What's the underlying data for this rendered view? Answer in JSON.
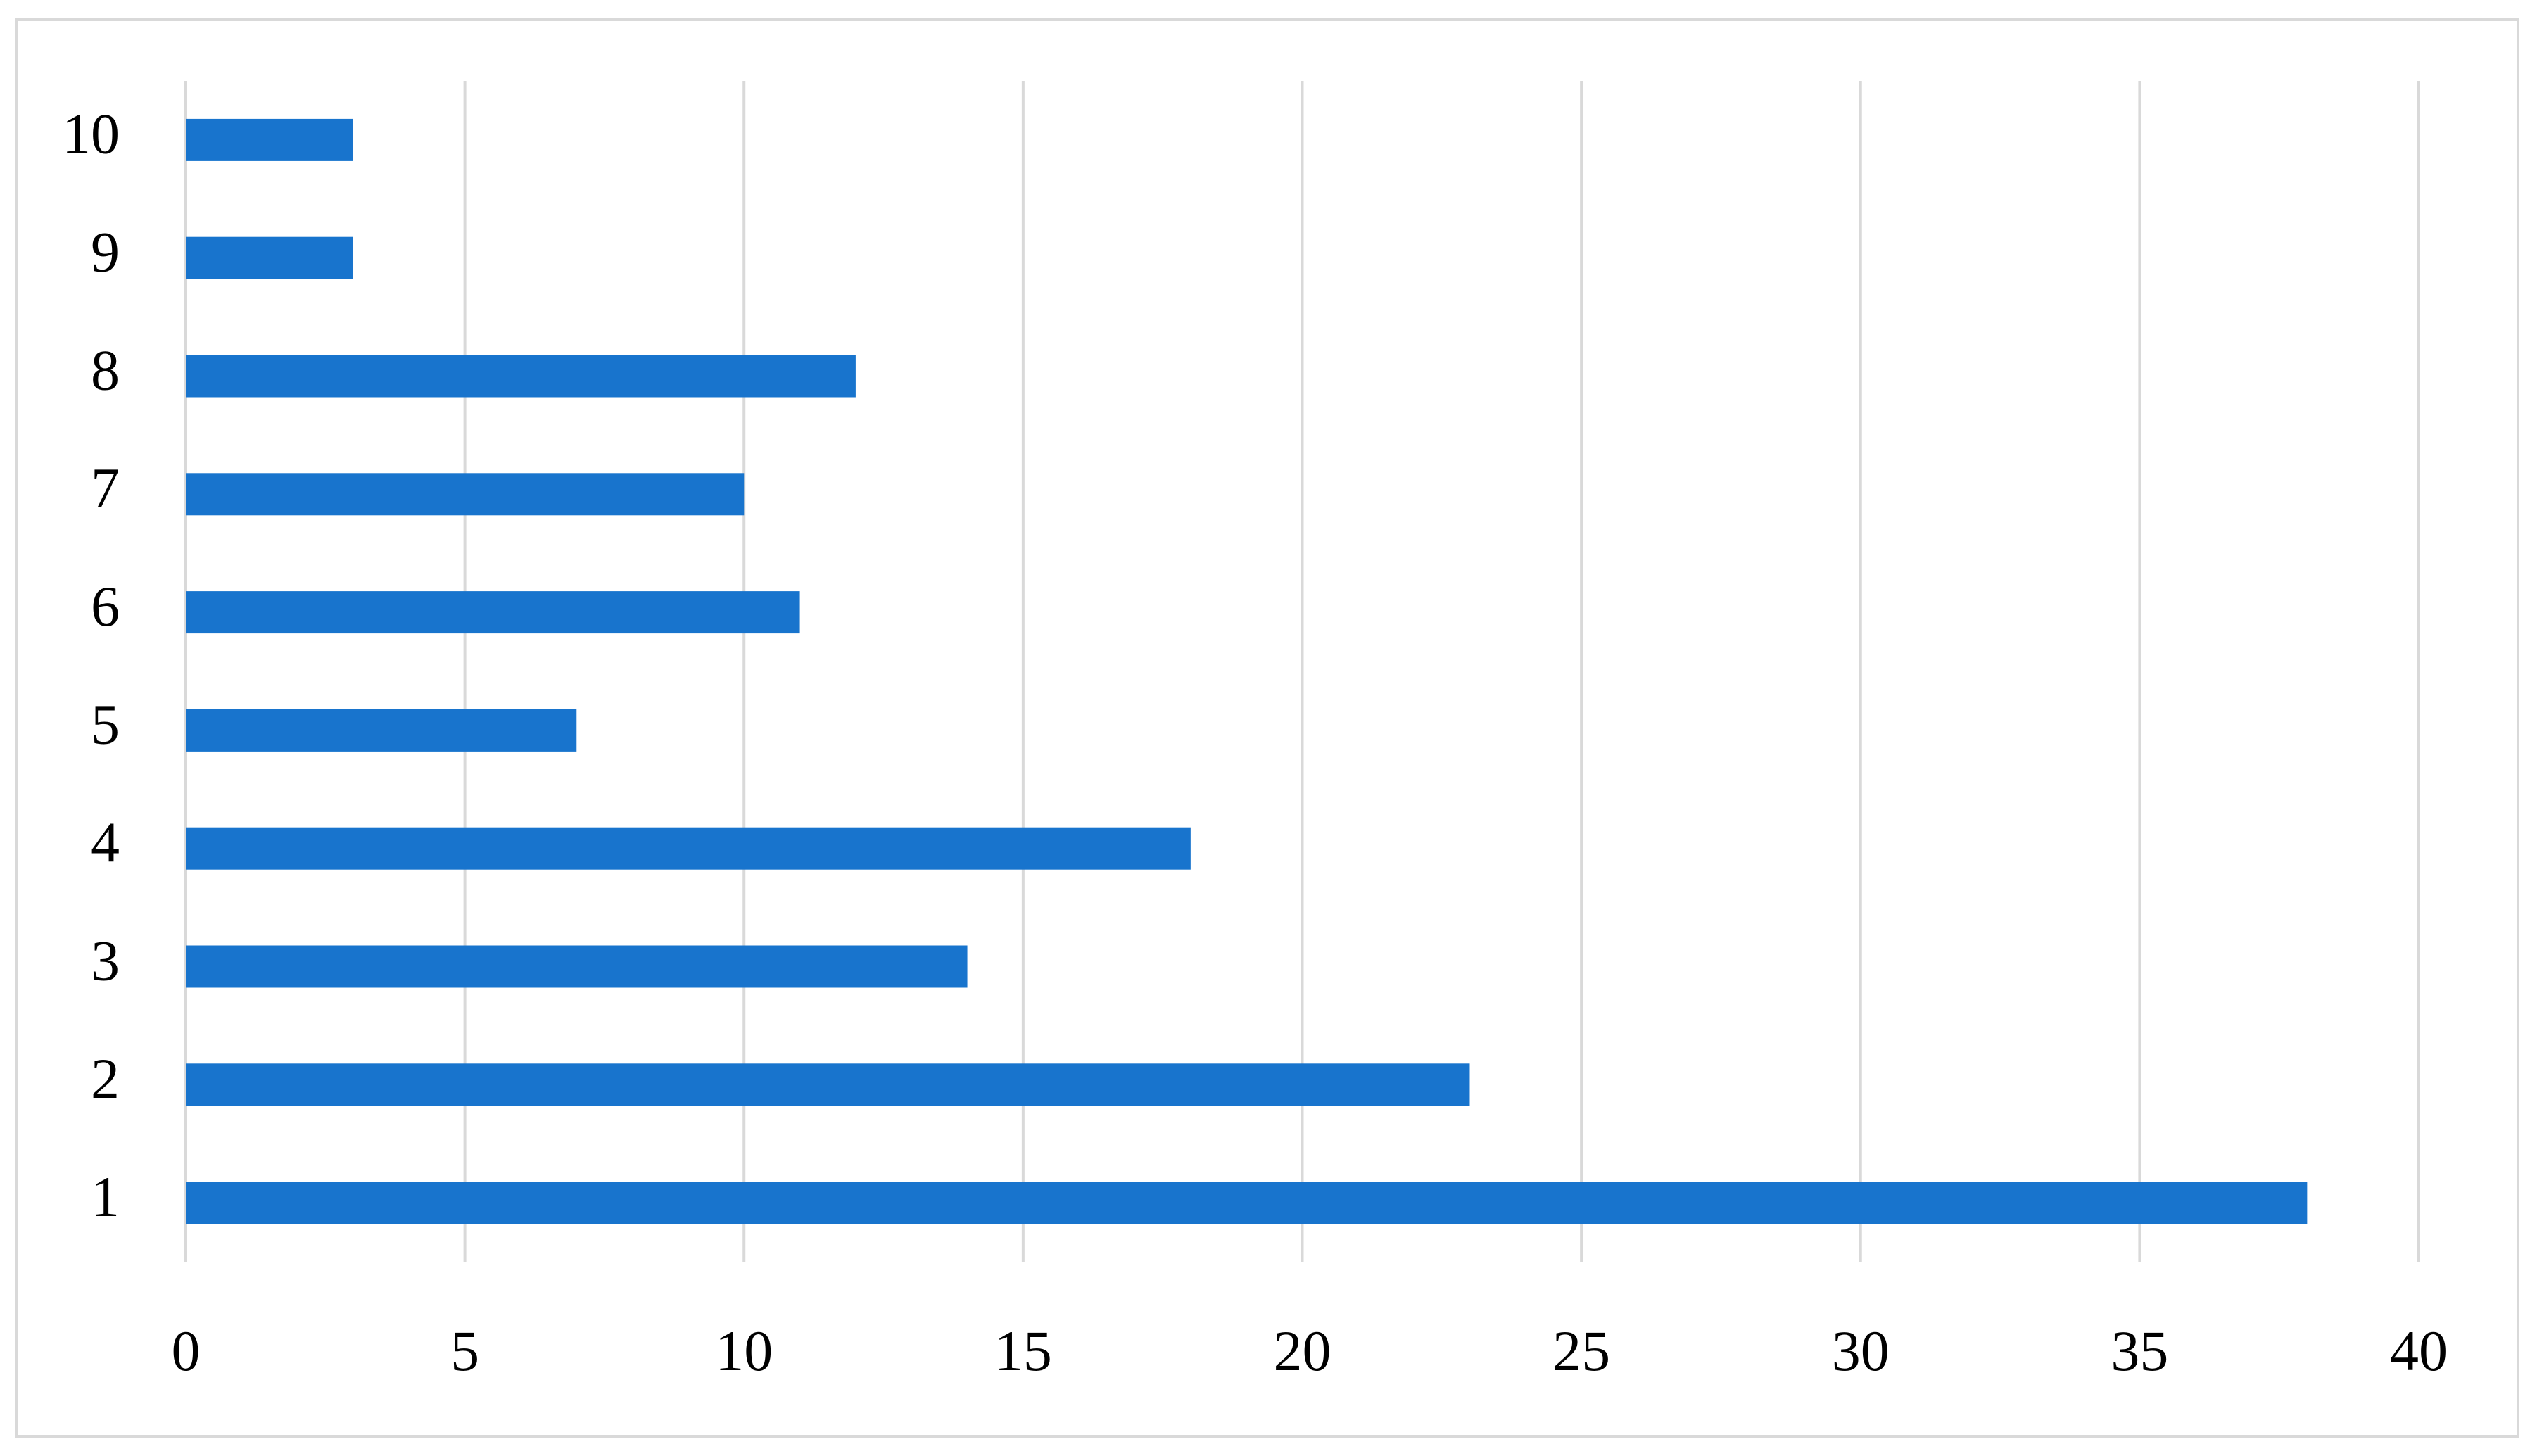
{
  "chart_data": {
    "type": "barh",
    "categories": [
      "1",
      "2",
      "3",
      "4",
      "5",
      "6",
      "7",
      "8",
      "9",
      "10"
    ],
    "values": [
      38,
      23,
      14,
      18,
      7,
      11,
      10,
      12,
      3,
      3
    ],
    "color": "#1874cd",
    "xlim": [
      0,
      40
    ],
    "xticks": [
      0,
      5,
      10,
      15,
      20,
      25,
      30,
      35,
      40
    ],
    "grid": true
  }
}
